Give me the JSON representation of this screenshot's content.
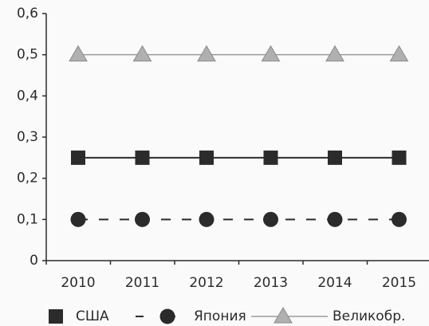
{
  "chart_data": {
    "type": "line",
    "categories": [
      "2010",
      "2011",
      "2012",
      "2013",
      "2014",
      "2015"
    ],
    "series": [
      {
        "name": "США",
        "color": "#2b2b2b",
        "marker": "square",
        "dash": "solid",
        "values": [
          0.25,
          0.25,
          0.25,
          0.25,
          0.25,
          0.25
        ]
      },
      {
        "name": "Япония",
        "color": "#2b2b2b",
        "marker": "circle",
        "dash": "dashed",
        "values": [
          0.1,
          0.1,
          0.1,
          0.1,
          0.1,
          0.1
        ]
      },
      {
        "name": "Великобр.",
        "color": "#9a9a9a",
        "marker": "triangle",
        "dash": "solid",
        "values": [
          0.5,
          0.5,
          0.5,
          0.5,
          0.5,
          0.5
        ]
      }
    ],
    "ylim": [
      0,
      0.6
    ],
    "yticks": [
      0,
      {
        "value": 0.1,
        "label": "0,1"
      },
      {
        "value": 0.2,
        "label": "0,2"
      },
      {
        "value": 0.3,
        "label": "0,3"
      },
      {
        "value": 0.4,
        "label": "0,4"
      },
      {
        "value": 0.5,
        "label": "0,5"
      },
      {
        "value": 0.6,
        "label": "0,6"
      }
    ],
    "legend": "bottom"
  }
}
